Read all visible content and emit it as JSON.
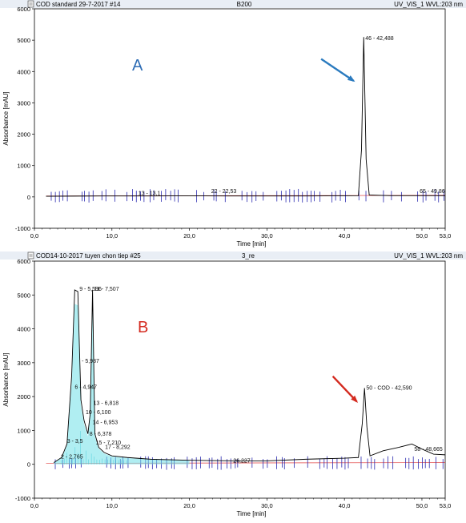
{
  "charts": [
    {
      "header": {
        "left": "COD standard 29-7-2017 #14",
        "center": "B200",
        "right": "UV_VIS_1 WVL:203 nm"
      },
      "panel_label": "A",
      "panel_label_color": "#2f6db5",
      "ylabel": "Absorbance [mAU]",
      "xlabel": "Time [min]",
      "xlim": [
        0,
        53
      ],
      "ylim": [
        -1000,
        6000
      ],
      "xticks": [
        {
          "v": 0,
          "t": "0,0"
        },
        {
          "v": 10,
          "t": "10,0"
        },
        {
          "v": 20,
          "t": "20,0"
        },
        {
          "v": 30,
          "t": "30,0"
        },
        {
          "v": 40,
          "t": "40,0"
        },
        {
          "v": 50,
          "t": "50,0"
        },
        {
          "v": 53,
          "t": "53,0"
        }
      ],
      "yticks": [
        {
          "v": -1000,
          "t": "-1000"
        },
        {
          "v": 0,
          "t": "0"
        },
        {
          "v": 1000,
          "t": "1000"
        },
        {
          "v": 2000,
          "t": "2000"
        },
        {
          "v": 3000,
          "t": "3000"
        },
        {
          "v": 4000,
          "t": "4000"
        },
        {
          "v": 5000,
          "t": "5000"
        },
        {
          "v": 6000,
          "t": "6000"
        }
      ],
      "annotations": [
        {
          "x": 42.49,
          "y": 5000,
          "text": "46 - 42,488"
        },
        {
          "x": 13.2,
          "y": 60,
          "text": "13 - 13,1"
        },
        {
          "x": 22.6,
          "y": 130,
          "text": "22 - 22,53"
        },
        {
          "x": 49.5,
          "y": 120,
          "text": "65 - 49,86"
        }
      ],
      "arrow": {
        "color": "#2b7bbf",
        "from": [
          37.0,
          4400
        ],
        "to": [
          41.2,
          3700
        ]
      },
      "chart_data": {
        "type": "line",
        "series": [
          {
            "color": "#000000",
            "x": [
              1.5,
              5,
              10,
              15,
              20,
              25,
              30,
              35,
              40,
              41.8,
              42.2,
              42.49,
              42.8,
              43.2,
              46,
              50,
              53
            ],
            "y": [
              20,
              25,
              30,
              30,
              35,
              30,
              30,
              30,
              35,
              40,
              1500,
              5100,
              1200,
              60,
              40,
              40,
              40
            ]
          }
        ]
      }
    },
    {
      "header": {
        "left": "COD14-10-2017 tuyen chon tiep #25",
        "center": "3_re",
        "right": "UV_VIS_1 WVL:203 nm"
      },
      "panel_label": "B",
      "panel_label_color": "#d42a1f",
      "ylabel": "Absorbance [mAU]",
      "xlabel": "Time [min]",
      "xlim": [
        0,
        53
      ],
      "ylim": [
        -1000,
        6000
      ],
      "xticks": [
        {
          "v": 0,
          "t": "0,0"
        },
        {
          "v": 10,
          "t": "10,0"
        },
        {
          "v": 20,
          "t": "20,0"
        },
        {
          "v": 30,
          "t": "30,0"
        },
        {
          "v": 40,
          "t": "40,0"
        },
        {
          "v": 50,
          "t": "50,0"
        },
        {
          "v": 53,
          "t": "53,0"
        }
      ],
      "yticks": [
        {
          "v": -1000,
          "t": "-1000"
        },
        {
          "v": 0,
          "t": "0"
        },
        {
          "v": 1000,
          "t": "1000"
        },
        {
          "v": 2000,
          "t": "2000"
        },
        {
          "v": 3000,
          "t": "3000"
        },
        {
          "v": 4000,
          "t": "4000"
        },
        {
          "v": 5000,
          "t": "5000"
        },
        {
          "v": 6000,
          "t": "6000"
        }
      ],
      "annotations": [
        {
          "x": 5.6,
          "y": 5120,
          "text": "9 - 5,596"
        },
        {
          "x": 7.5,
          "y": 5120,
          "text": "11 - 7,507"
        },
        {
          "x": 5.9,
          "y": 3000,
          "text": "- 5,987"
        },
        {
          "x": 5.0,
          "y": 2230,
          "text": "6 - 4,947"
        },
        {
          "x": 7.4,
          "y": 1750,
          "text": "13 - 6,818"
        },
        {
          "x": 6.4,
          "y": 1480,
          "text": "10 - 6,100"
        },
        {
          "x": 7.3,
          "y": 1190,
          "text": "14 - 6,953"
        },
        {
          "x": 6.9,
          "y": 850,
          "text": "8 - 6,378"
        },
        {
          "x": 7.7,
          "y": 580,
          "text": "15 - 7,210"
        },
        {
          "x": 8.9,
          "y": 460,
          "text": "17 - 8,292"
        },
        {
          "x": 4.0,
          "y": 630,
          "text": "3 - 3,5"
        },
        {
          "x": 3.2,
          "y": 170,
          "text": "2 - 2,765"
        },
        {
          "x": 25.0,
          "y": 50,
          "text": "- 26,227"
        },
        {
          "x": 42.6,
          "y": 2200,
          "text": "50 - COD - 42,590"
        },
        {
          "x": 48.8,
          "y": 400,
          "text": "58 - 48,665"
        }
      ],
      "arrow": {
        "color": "#d42a1f",
        "from": [
          38.5,
          2600
        ],
        "to": [
          41.6,
          1850
        ]
      },
      "chart_data": {
        "type": "line",
        "series": [
          {
            "color": "#000000",
            "x": [
              2.5,
              3.5,
              4.2,
              4.8,
              5.2,
              5.6,
              6.0,
              6.4,
              6.9,
              7.2,
              7.5,
              7.8,
              8.3,
              9.0,
              10,
              12,
              15,
              20,
              26,
              30,
              35,
              40,
              41.8,
              42.3,
              42.59,
              42.9,
              43.3,
              45,
              47,
              48.7,
              50,
              51.5,
              53
            ],
            "y": [
              50,
              200,
              600,
              2600,
              5150,
              5100,
              1900,
              1300,
              900,
              1500,
              5150,
              900,
              500,
              350,
              250,
              200,
              150,
              120,
              100,
              100,
              150,
              180,
              200,
              1200,
              2250,
              1100,
              250,
              400,
              500,
              600,
              450,
              300,
              280
            ]
          }
        ]
      }
    }
  ]
}
